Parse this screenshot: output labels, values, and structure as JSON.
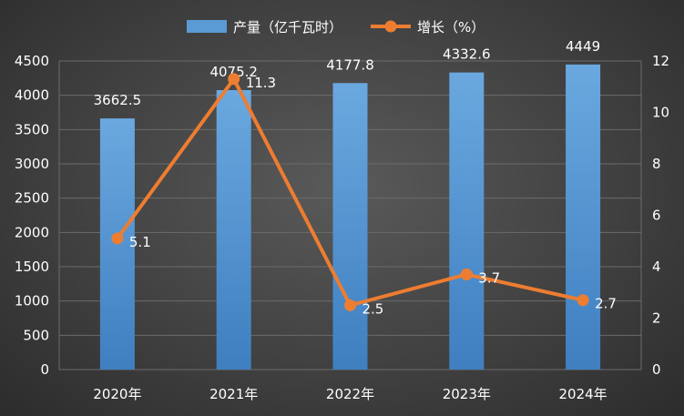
{
  "chart_data": {
    "type": "bar-line-combo",
    "categories": [
      "2020年",
      "2021年",
      "2022年",
      "2023年",
      "2024年"
    ],
    "series": [
      {
        "name": "产量（亿千瓦时）",
        "type": "bar",
        "axis": "left",
        "values": [
          3662.5,
          4075.2,
          4177.8,
          4332.6,
          4449
        ],
        "labels": [
          "3662.5",
          "4075.2",
          "4177.8",
          "4332.6",
          "4449"
        ]
      },
      {
        "name": "增长（%）",
        "type": "line",
        "axis": "right",
        "values": [
          5.1,
          11.3,
          2.5,
          3.7,
          2.7
        ],
        "labels": [
          "5.1",
          "11.3",
          "2.5",
          "3.7",
          "2.7"
        ]
      }
    ],
    "y_left": {
      "range": [
        0,
        4500
      ],
      "ticks": [
        "0",
        "500",
        "1000",
        "1500",
        "2000",
        "2500",
        "3000",
        "3500",
        "4000",
        "4500"
      ]
    },
    "y_right": {
      "range": [
        0,
        12
      ],
      "ticks": [
        "0",
        "2",
        "4",
        "6",
        "8",
        "10",
        "12"
      ]
    },
    "legend_position": "top-center",
    "grid": true,
    "colors": {
      "bar": "#5b9bd5",
      "line": "#ed7d31",
      "grid": "#6b6b6b",
      "text": "#ffffff"
    }
  }
}
